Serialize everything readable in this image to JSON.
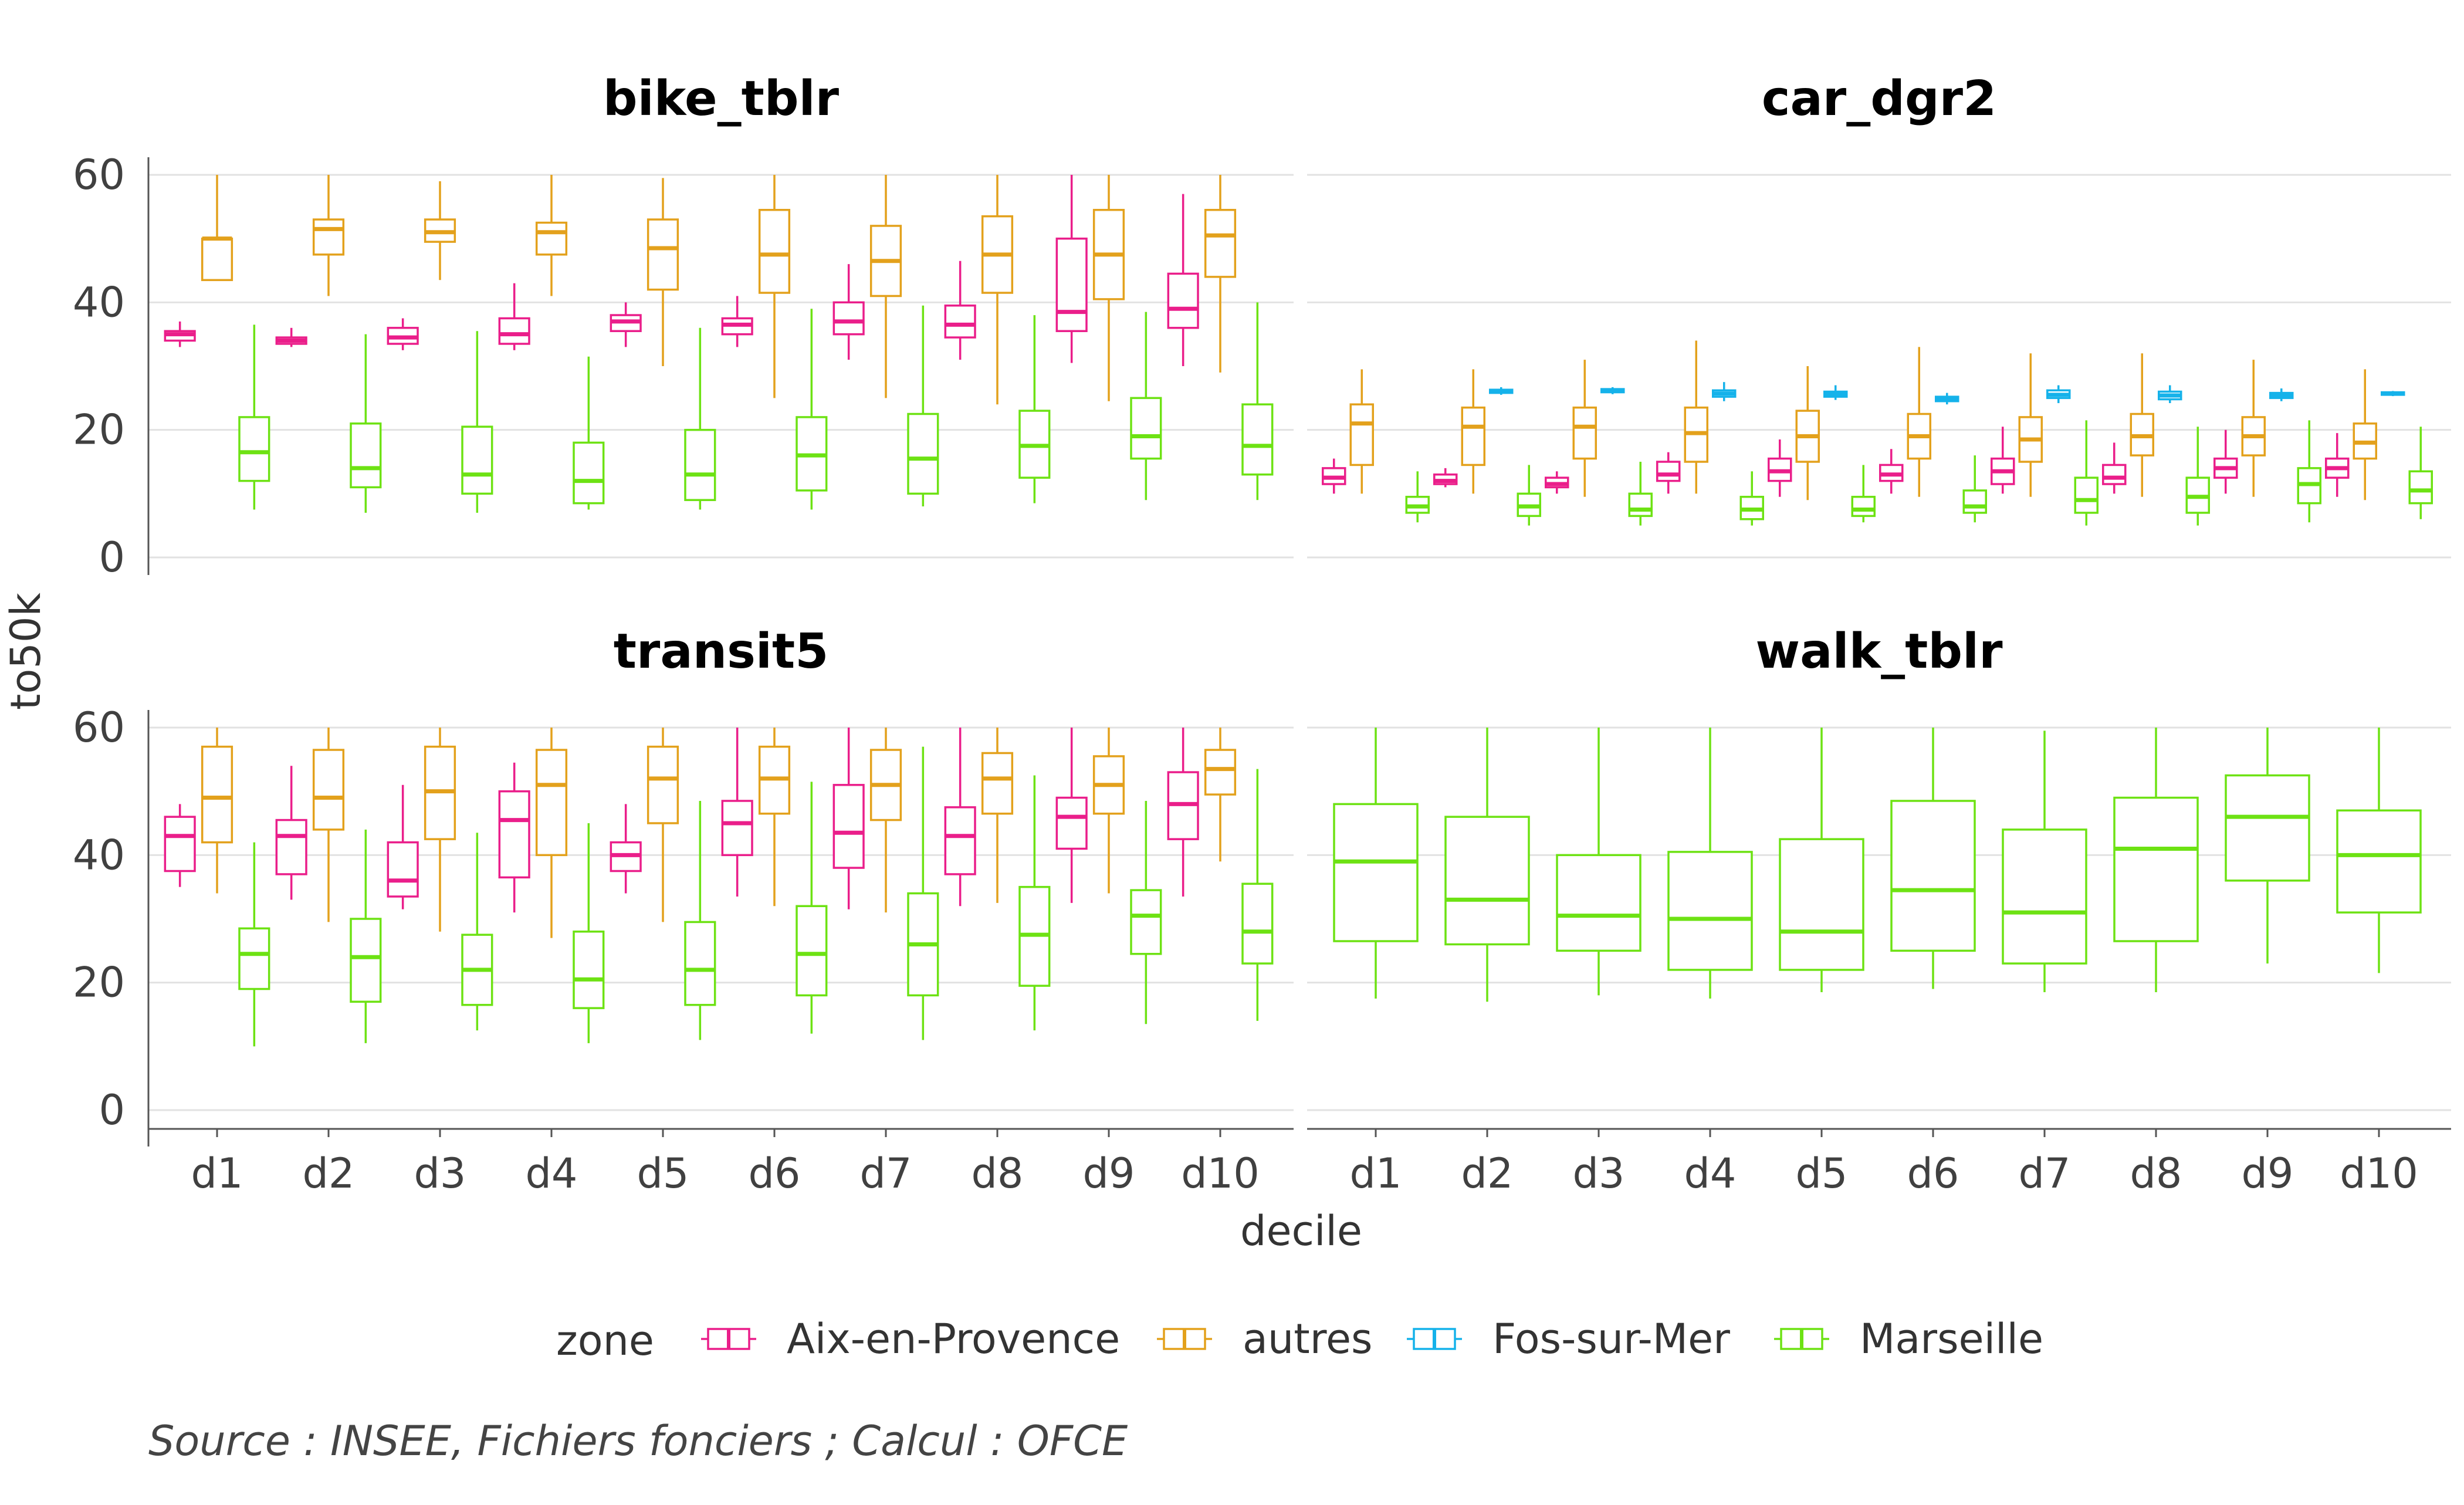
{
  "colors": {
    "Aix-en-Provence": "#ea1e8a",
    "autres": "#e3a11c",
    "Fos-sur-Mer": "#15b2ea",
    "Marseille": "#6de213",
    "grid": "#e2e2e2",
    "axis": "#555555"
  },
  "xlabel": "decile",
  "ylabel": "to50k",
  "legend": {
    "title": "zone",
    "items": [
      "Aix-en-Provence",
      "autres",
      "Fos-sur-Mer",
      "Marseille"
    ]
  },
  "caption": "Source : INSEE, Fichiers fonciers ; Calcul : OFCE",
  "chart_data": [
    {
      "type": "boxplot",
      "title": "bike_tblr",
      "categories": [
        "d1",
        "d2",
        "d3",
        "d4",
        "d5",
        "d6",
        "d7",
        "d8",
        "d9",
        "d10"
      ],
      "ylim": [
        0,
        60
      ],
      "yticks": [
        0,
        20,
        40,
        60
      ],
      "series": [
        {
          "name": "Aix-en-Provence",
          "boxes": [
            [
              33,
              34,
              35,
              35.5,
              37
            ],
            [
              33,
              33.5,
              34,
              34.5,
              36
            ],
            [
              32.5,
              33.5,
              34.5,
              36,
              37.5
            ],
            [
              32.5,
              33.5,
              35,
              37.5,
              43
            ],
            [
              33,
              35.5,
              37,
              38,
              40
            ],
            [
              33,
              35,
              36.5,
              37.5,
              41
            ],
            [
              31,
              35,
              37,
              40,
              46
            ],
            [
              31,
              34.5,
              36.5,
              39.5,
              46.5
            ],
            [
              30.5,
              35.5,
              38.5,
              50,
              60
            ],
            [
              30,
              36,
              39,
              44.5,
              57
            ]
          ]
        },
        {
          "name": "autres",
          "boxes": [
            [
              43.5,
              43.5,
              50,
              50,
              60
            ],
            [
              41,
              47.5,
              51.5,
              53,
              60
            ],
            [
              43.5,
              49.5,
              51,
              53,
              59
            ],
            [
              41,
              47.5,
              51,
              52.5,
              60
            ],
            [
              30,
              42,
              48.5,
              53,
              59.5
            ],
            [
              25,
              41.5,
              47.5,
              54.5,
              60
            ],
            [
              25,
              41,
              46.5,
              52,
              60
            ],
            [
              24,
              41.5,
              47.5,
              53.5,
              60
            ],
            [
              24.5,
              40.5,
              47.5,
              54.5,
              60
            ],
            [
              29,
              44,
              50.5,
              54.5,
              60
            ]
          ]
        },
        {
          "name": "Marseille",
          "boxes": [
            [
              7.5,
              12,
              16.5,
              22,
              36.5
            ],
            [
              7,
              11,
              14,
              21,
              35
            ],
            [
              7,
              10,
              13,
              20.5,
              35.5
            ],
            [
              7.5,
              8.5,
              12,
              18,
              31.5
            ],
            [
              7.5,
              9,
              13,
              20,
              36
            ],
            [
              7.5,
              10.5,
              16,
              22,
              39
            ],
            [
              8,
              10,
              15.5,
              22.5,
              39.5
            ],
            [
              8.5,
              12.5,
              17.5,
              23,
              38
            ],
            [
              9,
              15.5,
              19,
              25,
              38.5
            ],
            [
              9,
              13,
              17.5,
              24,
              40
            ]
          ]
        }
      ]
    },
    {
      "type": "boxplot",
      "title": "car_dgr2",
      "categories": [
        "d1",
        "d2",
        "d3",
        "d4",
        "d5",
        "d6",
        "d7",
        "d8",
        "d9",
        "d10"
      ],
      "ylim": [
        0,
        60
      ],
      "yticks": [
        0,
        20,
        40,
        60
      ],
      "series": [
        {
          "name": "Aix-en-Provence",
          "boxes": [
            [
              10,
              11.5,
              12.5,
              14,
              15.5
            ],
            [
              11,
              11.5,
              12,
              13,
              14
            ],
            [
              10,
              11,
              11.5,
              12.5,
              13.5
            ],
            [
              10,
              12,
              13,
              15,
              16.5
            ],
            [
              9.5,
              12,
              13.5,
              15.5,
              18.5
            ],
            [
              10,
              12,
              13,
              14.5,
              17
            ],
            [
              10,
              11.5,
              13.5,
              15.5,
              20.5
            ],
            [
              10,
              11.5,
              12.5,
              14.5,
              18
            ],
            [
              10,
              12.5,
              14,
              15.5,
              20
            ],
            [
              9.5,
              12.5,
              14,
              15.5,
              19.5
            ]
          ]
        },
        {
          "name": "autres",
          "boxes": [
            [
              10,
              14.5,
              21,
              24,
              29.5
            ],
            [
              10,
              14.5,
              20.5,
              23.5,
              29.5
            ],
            [
              9.5,
              15.5,
              20.5,
              23.5,
              31
            ],
            [
              10,
              15,
              19.5,
              23.5,
              34
            ],
            [
              9,
              15,
              19,
              23,
              30
            ],
            [
              9.5,
              15.5,
              19,
              22.5,
              33
            ],
            [
              9.5,
              15,
              18.5,
              22,
              32
            ],
            [
              9.5,
              16,
              19,
              22.5,
              32
            ],
            [
              9.5,
              16,
              19,
              22,
              31
            ],
            [
              9,
              15.5,
              18,
              21,
              29.5
            ]
          ]
        },
        {
          "name": "Fos-sur-Mer",
          "boxes": [
            null,
            [
              25.5,
              25.8,
              26,
              26.3,
              26.7
            ],
            [
              25.6,
              25.9,
              26.1,
              26.4,
              26.7
            ],
            [
              24.5,
              25.2,
              25.7,
              26.2,
              27.5
            ],
            [
              24.7,
              25.2,
              25.6,
              26,
              27
            ],
            [
              24,
              24.5,
              24.8,
              25.2,
              25.8
            ],
            [
              24.2,
              25,
              25.5,
              26.2,
              27
            ],
            [
              24.2,
              24.8,
              25.4,
              26,
              27
            ],
            [
              24.5,
              25,
              25.4,
              25.8,
              26.5
            ],
            [
              25.3,
              25.5,
              25.7,
              25.9,
              26.1
            ]
          ]
        },
        {
          "name": "Marseille",
          "boxes": [
            [
              5.5,
              7,
              8,
              9.5,
              13.5
            ],
            [
              5,
              6.5,
              8,
              10,
              14.5
            ],
            [
              5,
              6.5,
              7.5,
              10,
              15
            ],
            [
              5,
              6,
              7.5,
              9.5,
              13.5
            ],
            [
              5.5,
              6.5,
              7.5,
              9.5,
              14.5
            ],
            [
              5.5,
              7,
              8,
              10.5,
              16
            ],
            [
              5,
              7,
              9,
              12.5,
              21.5
            ],
            [
              5,
              7,
              9.5,
              12.5,
              20.5
            ],
            [
              5.5,
              8.5,
              11.5,
              14,
              21.5
            ],
            [
              6,
              8.5,
              10.5,
              13.5,
              20.5
            ]
          ]
        }
      ]
    },
    {
      "type": "boxplot",
      "title": "transit5",
      "categories": [
        "d1",
        "d2",
        "d3",
        "d4",
        "d5",
        "d6",
        "d7",
        "d8",
        "d9",
        "d10"
      ],
      "ylim": [
        0,
        60
      ],
      "yticks": [
        0,
        20,
        40,
        60
      ],
      "series": [
        {
          "name": "Aix-en-Provence",
          "boxes": [
            [
              35,
              37.5,
              43,
              46,
              48
            ],
            [
              33,
              37,
              43,
              45.5,
              54
            ],
            [
              31.5,
              33.5,
              36,
              42,
              51
            ],
            [
              31,
              36.5,
              45.5,
              50,
              54.5
            ],
            [
              34,
              37.5,
              40,
              42,
              48
            ],
            [
              33.5,
              40,
              45,
              48.5,
              60
            ],
            [
              31.5,
              38,
              43.5,
              51,
              60
            ],
            [
              32,
              37,
              43,
              47.5,
              60
            ],
            [
              32.5,
              41,
              46,
              49,
              60
            ],
            [
              33.5,
              42.5,
              48,
              53,
              60
            ]
          ]
        },
        {
          "name": "autres",
          "boxes": [
            [
              34,
              42,
              49,
              57,
              60
            ],
            [
              29.5,
              44,
              49,
              56.5,
              60
            ],
            [
              28,
              42.5,
              50,
              57,
              60
            ],
            [
              27,
              40,
              51,
              56.5,
              60
            ],
            [
              29.5,
              45,
              52,
              57,
              60
            ],
            [
              32,
              46.5,
              52,
              57,
              60
            ],
            [
              31,
              45.5,
              51,
              56.5,
              60
            ],
            [
              32.5,
              46.5,
              52,
              56,
              60
            ],
            [
              34,
              46.5,
              51,
              55.5,
              60
            ],
            [
              39,
              49.5,
              53.5,
              56.5,
              60
            ]
          ]
        },
        {
          "name": "Marseille",
          "boxes": [
            [
              10,
              19,
              24.5,
              28.5,
              42
            ],
            [
              10.5,
              17,
              24,
              30,
              44
            ],
            [
              12.5,
              16.5,
              22,
              27.5,
              43.5
            ],
            [
              10.5,
              16,
              20.5,
              28,
              45
            ],
            [
              11,
              16.5,
              22,
              29.5,
              48.5
            ],
            [
              12,
              18,
              24.5,
              32,
              51.5
            ],
            [
              11,
              18,
              26,
              34,
              57
            ],
            [
              12.5,
              19.5,
              27.5,
              35,
              52.5
            ],
            [
              13.5,
              24.5,
              30.5,
              34.5,
              48.5
            ],
            [
              14,
              23,
              28,
              35.5,
              53.5
            ]
          ]
        }
      ]
    },
    {
      "type": "boxplot",
      "title": "walk_tblr",
      "categories": [
        "d1",
        "d2",
        "d3",
        "d4",
        "d5",
        "d6",
        "d7",
        "d8",
        "d9",
        "d10"
      ],
      "ylim": [
        0,
        60
      ],
      "yticks": [
        0,
        20,
        40,
        60
      ],
      "series": [
        {
          "name": "Marseille",
          "boxes": [
            [
              17.5,
              26.5,
              39,
              48,
              60
            ],
            [
              17,
              26,
              33,
              46,
              60
            ],
            [
              18,
              25,
              30.5,
              40,
              60
            ],
            [
              17.5,
              22,
              30,
              40.5,
              60
            ],
            [
              18.5,
              22,
              28,
              42.5,
              60
            ],
            [
              19,
              25,
              34.5,
              48.5,
              60
            ],
            [
              18.5,
              23,
              31,
              44,
              59.5
            ],
            [
              18.5,
              26.5,
              41,
              49,
              60
            ],
            [
              23,
              36,
              46,
              52.5,
              60
            ],
            [
              21.5,
              31,
              40,
              47,
              60
            ]
          ]
        }
      ]
    }
  ]
}
